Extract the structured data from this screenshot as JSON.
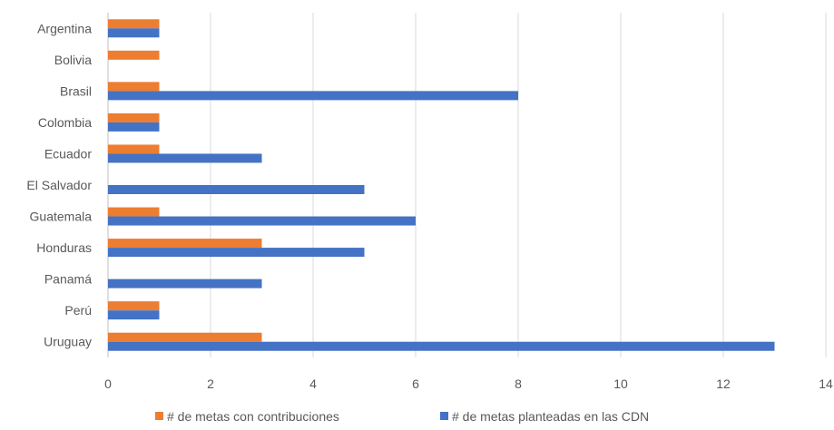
{
  "chart_data": {
    "type": "bar",
    "orientation": "horizontal",
    "categories": [
      "Argentina",
      "Bolivia",
      "Brasil",
      "Colombia",
      "Ecuador",
      "El Salvador",
      "Guatemala",
      "Honduras",
      "Panamá",
      "Perú",
      "Uruguay"
    ],
    "series": [
      {
        "name": "# de  metas con contribuciones",
        "color": "#ED7D31",
        "values": [
          1,
          1,
          1,
          1,
          1,
          0,
          1,
          3,
          0,
          1,
          3
        ]
      },
      {
        "name": "# de metas planteadas en las CDN",
        "color": "#4472C4",
        "values": [
          1,
          0,
          8,
          1,
          3,
          5,
          6,
          5,
          3,
          1,
          13
        ]
      }
    ],
    "xlim": [
      0,
      14
    ],
    "xticks": [
      0,
      2,
      4,
      6,
      8,
      10,
      12,
      14
    ],
    "grid": "vertical",
    "legend_position": "bottom"
  }
}
